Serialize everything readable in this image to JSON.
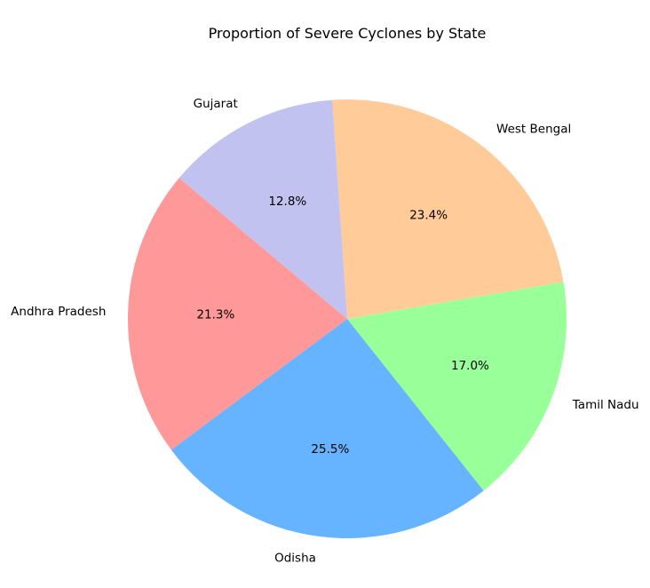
{
  "chart_data": {
    "type": "pie",
    "title": "Proportion of Severe Cyclones by State",
    "categories": [
      "Andhra Pradesh",
      "Odisha",
      "Tamil Nadu",
      "West Bengal",
      "Gujarat"
    ],
    "values": [
      21.3,
      25.5,
      17.0,
      23.4,
      12.8
    ],
    "labels": [
      "21.3%",
      "25.5%",
      "17.0%",
      "23.4%",
      "12.8%"
    ],
    "colors": [
      "#ff9999",
      "#66b3ff",
      "#99ff99",
      "#ffcc99",
      "#c2c2f0"
    ],
    "legend": false
  }
}
